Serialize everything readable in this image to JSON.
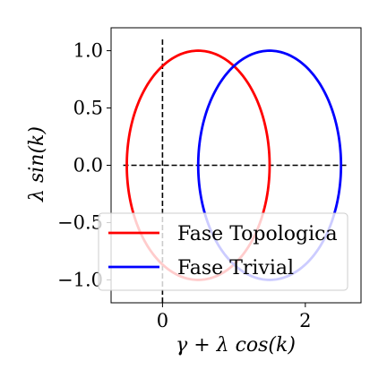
{
  "chart_data": {
    "type": "line",
    "xlabel": "γ + λ cos(k)",
    "ylabel": "λ sin(k)",
    "xlim": [
      -0.72,
      2.78
    ],
    "ylim": [
      -1.2,
      1.2
    ],
    "xticks": [
      {
        "value": 0,
        "label": "0"
      },
      {
        "value": 2,
        "label": "2"
      }
    ],
    "yticks": [
      {
        "value": 1.0,
        "label": "1.0"
      },
      {
        "value": 0.5,
        "label": "0.5"
      },
      {
        "value": 0.0,
        "label": "0.0"
      },
      {
        "value": -0.5,
        "label": "−0.5"
      },
      {
        "value": -1.0,
        "label": "−1.0"
      }
    ],
    "grid": false,
    "legend_position": "lower-left",
    "series": [
      {
        "name": "Fase Topologica",
        "color": "#ff0000",
        "shape": "ellipse",
        "center": [
          0.5,
          0.0
        ],
        "radius_x": 1.0,
        "radius_y": 1.0
      },
      {
        "name": "Fase Trivial",
        "color": "#0000ff",
        "shape": "ellipse",
        "center": [
          1.5,
          0.0
        ],
        "radius_x": 1.0,
        "radius_y": 1.0
      }
    ],
    "reference_lines": [
      {
        "orientation": "horizontal",
        "value": 0.0,
        "from": -0.55,
        "to": 2.58,
        "style": "dashed",
        "color": "#000000"
      },
      {
        "orientation": "vertical",
        "value": 0.0,
        "from": -1.2,
        "to": 1.1,
        "style": "dashed",
        "color": "#000000"
      }
    ]
  }
}
